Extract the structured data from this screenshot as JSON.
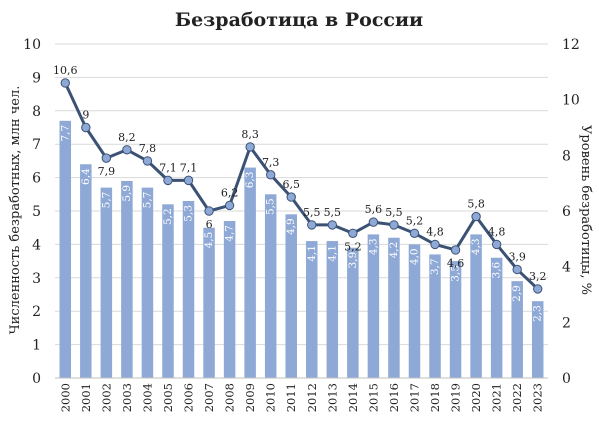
{
  "chart_data": {
    "type": "bar",
    "title": "Безработица в России",
    "ylabel": "Численность безработных, млн чел.",
    "y2label": "Уровень безработицы, %",
    "ylim": [
      0,
      10
    ],
    "y2lim": [
      0,
      12
    ],
    "yticks": [
      "0",
      "1",
      "2",
      "3",
      "4",
      "5",
      "6",
      "7",
      "8",
      "9",
      "10"
    ],
    "y2ticks": [
      "0",
      "2",
      "4",
      "6",
      "8",
      "10",
      "12"
    ],
    "grid": true,
    "categories": [
      "2000",
      "2001",
      "2002",
      "2003",
      "2004",
      "2005",
      "2006",
      "2007",
      "2008",
      "2009",
      "2010",
      "2011",
      "2012",
      "2013",
      "2014",
      "2015",
      "2016",
      "2017",
      "2018",
      "2019",
      "2020",
      "2021",
      "2022",
      "2023"
    ],
    "series": [
      {
        "type": "bar",
        "axis": "left",
        "color": "#8fa9d6",
        "values": [
          7.7,
          6.4,
          5.7,
          5.9,
          5.7,
          5.2,
          5.3,
          4.5,
          4.7,
          6.3,
          5.5,
          4.9,
          4.1,
          4.1,
          3.9,
          4.3,
          4.2,
          4.0,
          3.7,
          3.5,
          4.3,
          3.6,
          2.9,
          2.3
        ],
        "labels": [
          "7,7",
          "6,4",
          "5,7",
          "5,9",
          "5,7",
          "5,2",
          "5,3",
          "4,5",
          "4,7",
          "6,3",
          "5,5",
          "4,9",
          "4,1",
          "4,1",
          "3,9",
          "4,3",
          "4,2",
          "4,0",
          "3,7",
          "3,5",
          "4,3",
          "3,6",
          "2,9",
          "2,3"
        ]
      },
      {
        "type": "line",
        "axis": "right",
        "color": "#3b5275",
        "marker_color": "#8fa9d6",
        "values": [
          10.6,
          9,
          7.9,
          8.2,
          7.8,
          7.1,
          7.1,
          6,
          6.2,
          8.3,
          7.3,
          6.5,
          5.5,
          5.5,
          5.2,
          5.6,
          5.5,
          5.2,
          4.8,
          4.6,
          5.8,
          4.8,
          3.9,
          3.2
        ],
        "labels": [
          "10,6",
          "9",
          "7,9",
          "8,2",
          "7,8",
          "7,1",
          "7,1",
          "6",
          "6,2",
          "8,3",
          "7,3",
          "6,5",
          "5,5",
          "5,5",
          "5,2",
          "5,6",
          "5,5",
          "5,2",
          "4,8",
          "4,6",
          "5,8",
          "4,8",
          "3,9",
          "3,2"
        ]
      }
    ]
  }
}
